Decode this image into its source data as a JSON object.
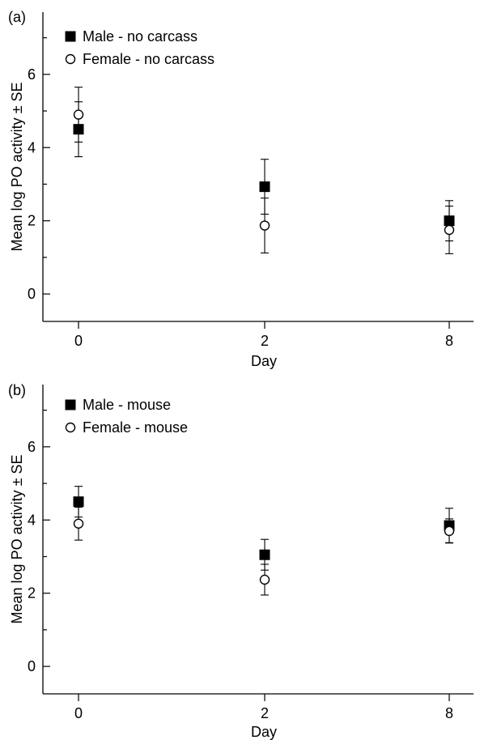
{
  "chart_data": [
    {
      "type": "scatter",
      "panel_label": "(a)",
      "xlabel": "Day",
      "ylabel": "Mean log PO activity ± SE",
      "categories": [
        "0",
        "2",
        "8"
      ],
      "yticks": [
        "0",
        "2",
        "4",
        "6"
      ],
      "ylim": [
        -0.75,
        7.7
      ],
      "legend_position": "top-left",
      "series": [
        {
          "name": "Male - no carcass",
          "marker": "filled-square",
          "color": "#000000",
          "values": [
            4.5,
            2.93,
            2.0
          ],
          "se": [
            0.75,
            0.75,
            0.55
          ]
        },
        {
          "name": "Female - no carcass",
          "marker": "open-circle",
          "color": "#000000",
          "values": [
            4.9,
            1.87,
            1.75
          ],
          "se": [
            0.75,
            0.75,
            0.65
          ]
        }
      ]
    },
    {
      "type": "scatter",
      "panel_label": "(b)",
      "xlabel": "Day",
      "ylabel": "Mean log PO activity ± SE",
      "categories": [
        "0",
        "2",
        "8"
      ],
      "yticks": [
        "0",
        "2",
        "4",
        "6"
      ],
      "ylim": [
        -0.75,
        7.7
      ],
      "legend_position": "top-left",
      "series": [
        {
          "name": "Male - mouse",
          "marker": "filled-square",
          "color": "#000000",
          "values": [
            4.5,
            3.05,
            3.85
          ],
          "se": [
            0.42,
            0.42,
            0.47
          ]
        },
        {
          "name": "Female - mouse",
          "marker": "open-circle",
          "color": "#000000",
          "values": [
            3.9,
            2.37,
            3.7
          ],
          "se": [
            0.45,
            0.42,
            0.33
          ]
        }
      ]
    }
  ]
}
